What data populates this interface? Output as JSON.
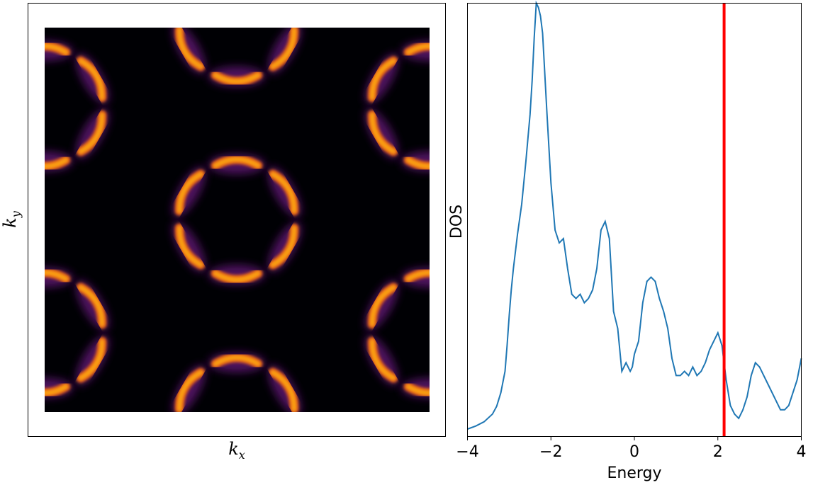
{
  "chart_data": [
    {
      "type": "heatmap",
      "xlabel": "k",
      "xlabel_sub": "x",
      "ylabel": "k",
      "ylabel_sub": "y",
      "colormap": "inferno",
      "show_ticks": false,
      "lattice": "honeycomb (graphene-like) Fermi surface arcs"
    },
    {
      "type": "line",
      "xlabel": "Energy",
      "ylabel": "DOS",
      "xlim": [
        -4,
        4
      ],
      "ylim": [
        0,
        1.0
      ],
      "xticks": [
        "−4",
        "−2",
        "0",
        "2",
        "4"
      ],
      "xtick_values": [
        -4,
        -2,
        0,
        2,
        4
      ],
      "show_yticks": false,
      "line_color": "#1f77b4",
      "vline": {
        "x": 2.15,
        "color": "#ff0000"
      },
      "x": [
        -4.0,
        -3.8,
        -3.6,
        -3.4,
        -3.3,
        -3.2,
        -3.1,
        -3.05,
        -3.0,
        -2.95,
        -2.9,
        -2.85,
        -2.8,
        -2.7,
        -2.6,
        -2.5,
        -2.45,
        -2.4,
        -2.35,
        -2.3,
        -2.25,
        -2.2,
        -2.1,
        -2.0,
        -1.9,
        -1.8,
        -1.7,
        -1.6,
        -1.5,
        -1.4,
        -1.3,
        -1.2,
        -1.1,
        -1.0,
        -0.9,
        -0.8,
        -0.7,
        -0.6,
        -0.5,
        -0.4,
        -0.3,
        -0.2,
        -0.1,
        -0.05,
        0.0,
        0.1,
        0.2,
        0.3,
        0.4,
        0.5,
        0.6,
        0.7,
        0.8,
        0.9,
        1.0,
        1.1,
        1.2,
        1.3,
        1.4,
        1.5,
        1.6,
        1.7,
        1.8,
        1.9,
        2.0,
        2.1,
        2.2,
        2.3,
        2.4,
        2.5,
        2.6,
        2.7,
        2.8,
        2.9,
        3.0,
        3.1,
        3.2,
        3.3,
        3.4,
        3.5,
        3.6,
        3.7,
        3.8,
        3.9,
        4.0
      ],
      "y": [
        0.005,
        0.012,
        0.022,
        0.04,
        0.058,
        0.09,
        0.14,
        0.2,
        0.27,
        0.33,
        0.38,
        0.42,
        0.46,
        0.53,
        0.63,
        0.74,
        0.82,
        0.92,
        1.0,
        0.99,
        0.97,
        0.93,
        0.75,
        0.58,
        0.47,
        0.44,
        0.45,
        0.38,
        0.32,
        0.31,
        0.32,
        0.3,
        0.31,
        0.33,
        0.38,
        0.47,
        0.49,
        0.45,
        0.28,
        0.24,
        0.14,
        0.16,
        0.14,
        0.15,
        0.18,
        0.21,
        0.3,
        0.35,
        0.36,
        0.35,
        0.31,
        0.28,
        0.24,
        0.17,
        0.13,
        0.13,
        0.14,
        0.13,
        0.15,
        0.13,
        0.14,
        0.16,
        0.19,
        0.21,
        0.23,
        0.2,
        0.12,
        0.06,
        0.04,
        0.03,
        0.05,
        0.08,
        0.13,
        0.16,
        0.15,
        0.13,
        0.11,
        0.09,
        0.07,
        0.05,
        0.05,
        0.06,
        0.09,
        0.12,
        0.17
      ]
    }
  ]
}
